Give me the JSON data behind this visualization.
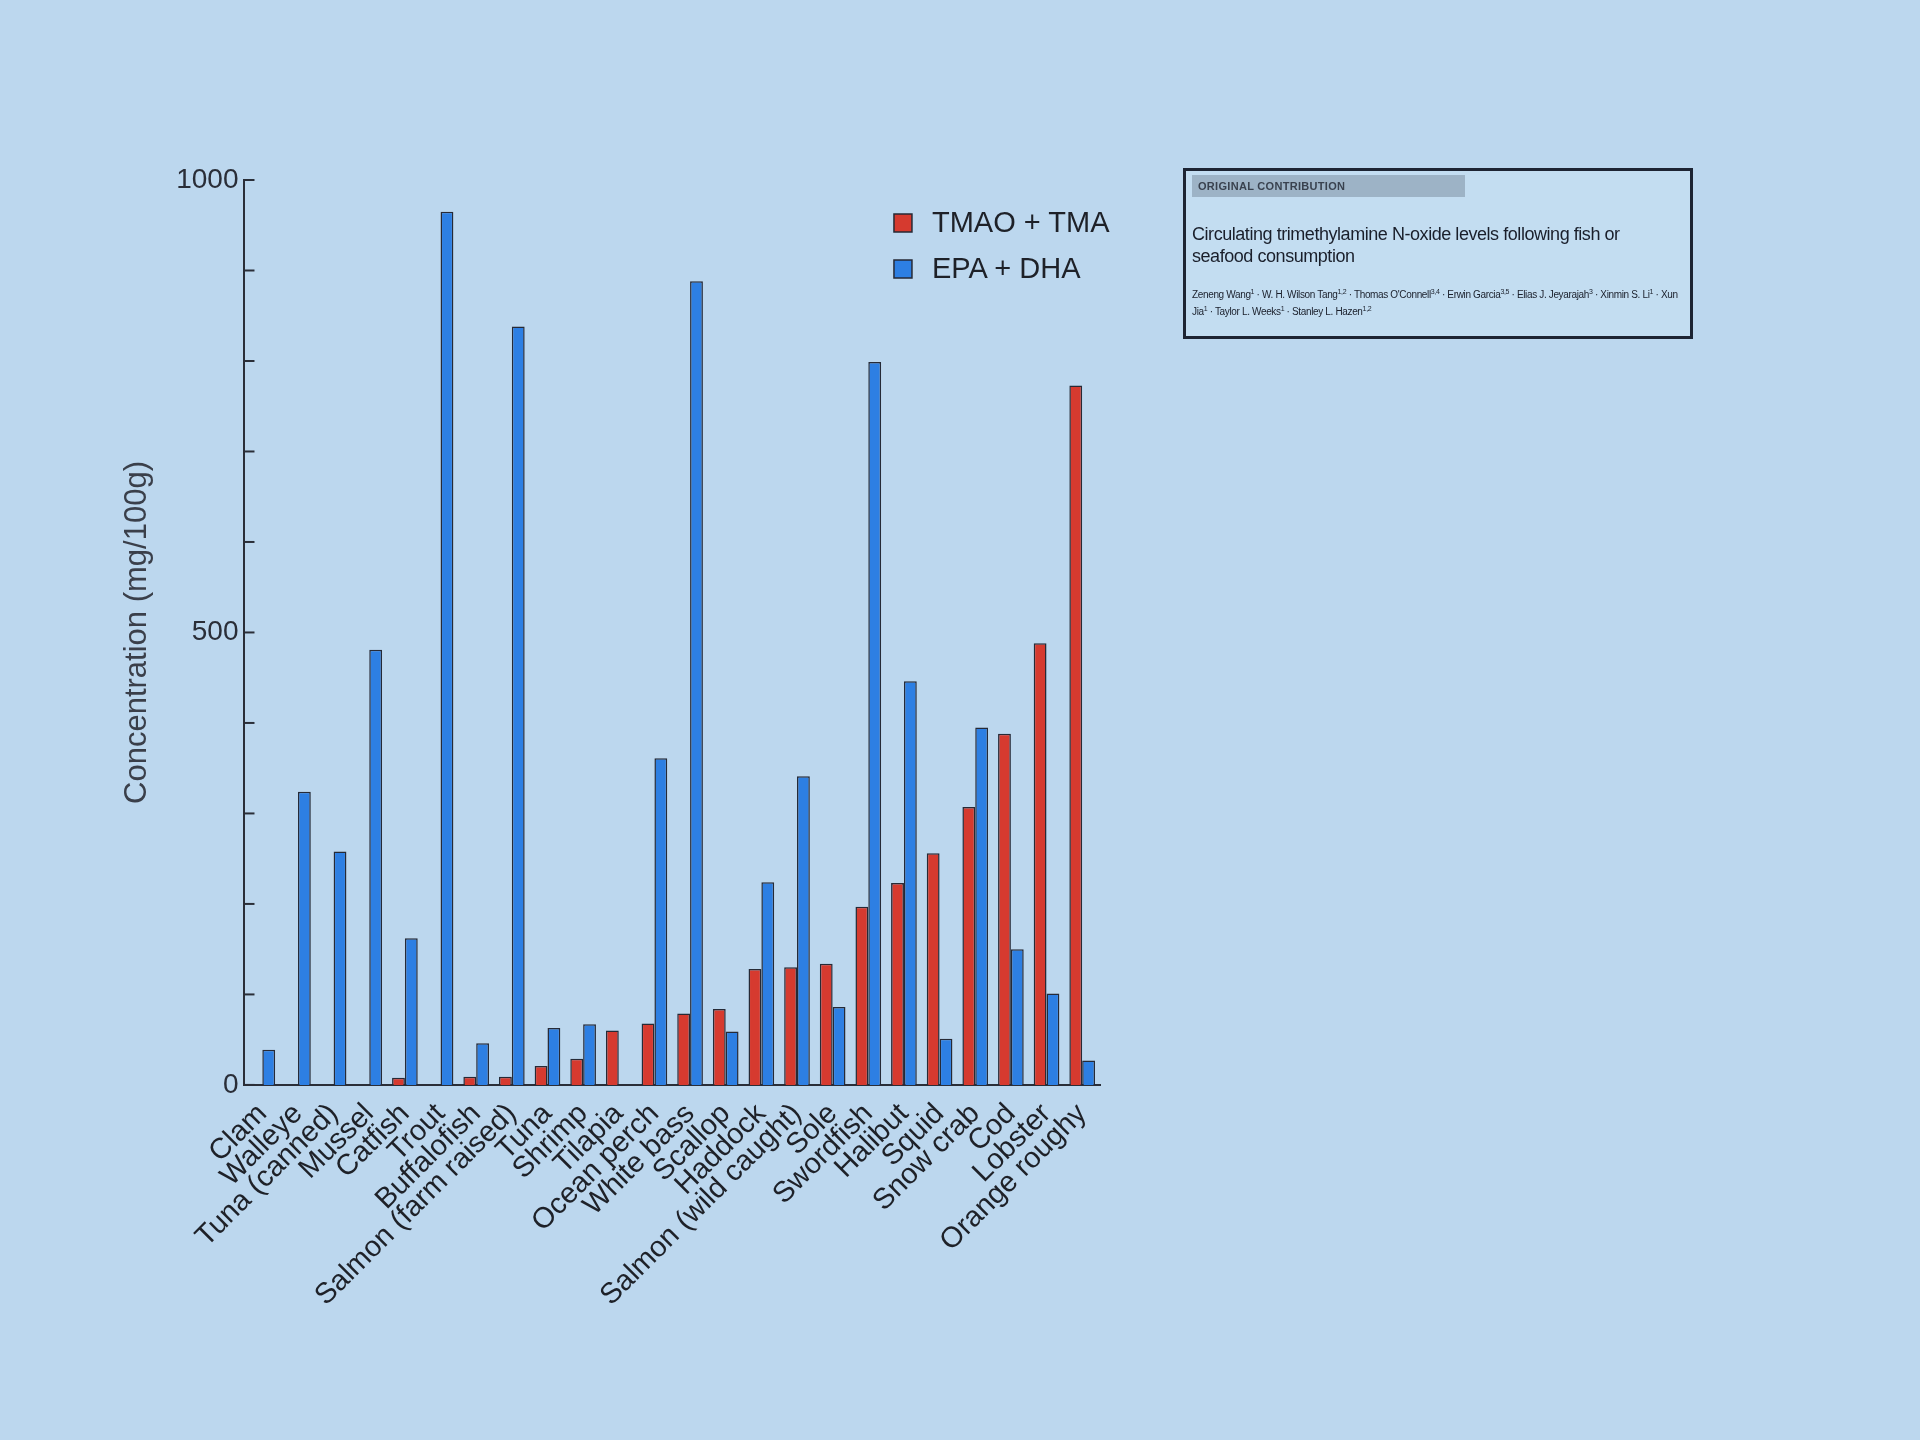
{
  "chart_data": {
    "type": "bar",
    "ylabel": "Concentration (mg/100g)",
    "categories": [
      "Clam",
      "Walleye",
      "Tuna (canned)",
      "Mussel",
      "Catfish",
      "Trout",
      "Buffalofish",
      "Salmon (farm raised)",
      "Tuna",
      "Shrimp",
      "Tilapia",
      "Ocean perch",
      "White bass",
      "Scallop",
      "Haddock",
      "Salmon (wild caught)",
      "Sole",
      "Swordfish",
      "Halibut",
      "Squid",
      "Snow crab",
      "Cod",
      "Lobster",
      "Orange roughy"
    ],
    "series": [
      {
        "name": "TMAO + TMA",
        "color": "#d63a2f",
        "values": [
          0,
          0,
          0,
          0,
          8,
          0,
          9,
          9,
          21,
          29,
          60,
          68,
          79,
          84,
          128,
          130,
          134,
          197,
          223,
          256,
          307,
          388,
          488,
          773
        ]
      },
      {
        "name": "EPA + DHA",
        "color": "#2d7fe3",
        "values": [
          39,
          324,
          258,
          481,
          162,
          965,
          46,
          838,
          63,
          67,
          0,
          361,
          888,
          59,
          224,
          341,
          86,
          799,
          446,
          51,
          395,
          150,
          101,
          27
        ]
      }
    ],
    "ylim": [
      0,
      1000
    ],
    "yticks": [
      0,
      {
        "value": 100,
        "label": null
      },
      {
        "value": 200,
        "label": null
      },
      {
        "value": 300,
        "label": null
      },
      {
        "value": 400,
        "label": null
      },
      500,
      {
        "value": 600,
        "label": null
      },
      {
        "value": 700,
        "label": null
      },
      {
        "value": 800,
        "label": null
      },
      {
        "value": 900,
        "label": null
      },
      1000
    ],
    "legend": "top right",
    "annotations": [
      "ORIGINAL CONTRIBUTION",
      "Circulating trimethylamine N-oxide levels following fish or seafood consumption",
      "Zeneng Wang$^{1}$ · W. H. Wilson Tang$^{1,2}$ · Thomas O'Connell$^{3,4}$ · Erwin Garcia$^{3,5}$ · Elias J. Jeyarajah$^{3}$ · Xinmin S. Li$^{1}$ · Xun Jia$^{1}$ · Taylor L. Weeks$^{1}$ · Stanley L. Hazen$^{1,2}$"
    ]
  }
}
